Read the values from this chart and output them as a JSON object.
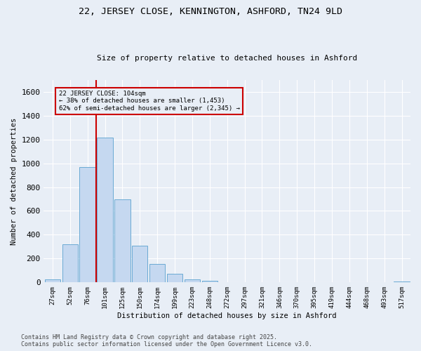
{
  "title_line1": "22, JERSEY CLOSE, KENNINGTON, ASHFORD, TN24 9LD",
  "title_line2": "Size of property relative to detached houses in Ashford",
  "xlabel": "Distribution of detached houses by size in Ashford",
  "ylabel": "Number of detached properties",
  "footnote": "Contains HM Land Registry data © Crown copyright and database right 2025.\nContains public sector information licensed under the Open Government Licence v3.0.",
  "bar_labels": [
    "27sqm",
    "52sqm",
    "76sqm",
    "101sqm",
    "125sqm",
    "150sqm",
    "174sqm",
    "199sqm",
    "223sqm",
    "248sqm",
    "272sqm",
    "297sqm",
    "321sqm",
    "346sqm",
    "370sqm",
    "395sqm",
    "419sqm",
    "444sqm",
    "468sqm",
    "493sqm",
    "517sqm"
  ],
  "bar_values": [
    25,
    320,
    970,
    1215,
    700,
    310,
    155,
    70,
    25,
    15,
    0,
    0,
    0,
    0,
    0,
    0,
    0,
    0,
    0,
    0,
    8
  ],
  "bar_color": "#c5d8f0",
  "bar_edge_color": "#6aaad4",
  "bg_color": "#e8eef6",
  "grid_color": "#ffffff",
  "vline_color": "#cc0000",
  "annotation_text": "22 JERSEY CLOSE: 104sqm\n← 38% of detached houses are smaller (1,453)\n62% of semi-detached houses are larger (2,345) →",
  "annotation_box_edge_color": "#cc0000",
  "ylim": [
    0,
    1700
  ],
  "yticks": [
    0,
    200,
    400,
    600,
    800,
    1000,
    1200,
    1400,
    1600
  ]
}
